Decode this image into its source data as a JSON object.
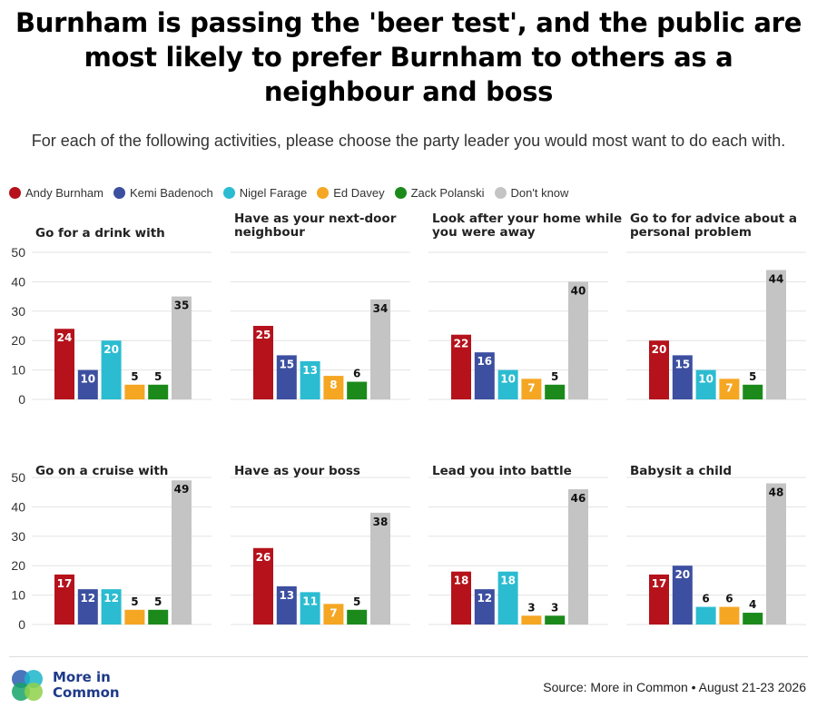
{
  "title": "Burnham is passing the 'beer test', and the public are most likely to prefer Burnham to others as a neighbour and boss",
  "subtitle": "For each of the following activities, please choose the party leader you would most want to do each with.",
  "legend": [
    {
      "name": "Andy Burnham",
      "color": "#b5121b"
    },
    {
      "name": "Kemi Badenoch",
      "color": "#3d4fa0"
    },
    {
      "name": "Nigel Farage",
      "color": "#2bbcd1"
    },
    {
      "name": "Ed Davey",
      "color": "#f5a623"
    },
    {
      "name": "Zack Polanski",
      "color": "#1b8a1b"
    },
    {
      "name": "Don't know",
      "color": "#c4c4c4"
    }
  ],
  "chart_data": [
    {
      "type": "bar",
      "title": "Go for a drink with",
      "categories": [
        "Andy Burnham",
        "Kemi Badenoch",
        "Nigel Farage",
        "Ed Davey",
        "Zack Polanski",
        "Don't know"
      ],
      "values": [
        24,
        10,
        20,
        5,
        5,
        35
      ],
      "ylim": [
        0,
        50
      ],
      "yticks": [
        0,
        10,
        20,
        30,
        40,
        50
      ]
    },
    {
      "type": "bar",
      "title": "Have as your next-door neighbour",
      "categories": [
        "Andy Burnham",
        "Kemi Badenoch",
        "Nigel Farage",
        "Ed Davey",
        "Zack Polanski",
        "Don't know"
      ],
      "values": [
        25,
        15,
        13,
        8,
        6,
        34
      ],
      "ylim": [
        0,
        50
      ]
    },
    {
      "type": "bar",
      "title": "Look after your home while you were away",
      "categories": [
        "Andy Burnham",
        "Kemi Badenoch",
        "Nigel Farage",
        "Ed Davey",
        "Zack Polanski",
        "Don't know"
      ],
      "values": [
        22,
        16,
        10,
        7,
        5,
        40
      ],
      "ylim": [
        0,
        50
      ]
    },
    {
      "type": "bar",
      "title": "Go to for advice about a personal problem",
      "categories": [
        "Andy Burnham",
        "Kemi Badenoch",
        "Nigel Farage",
        "Ed Davey",
        "Zack Polanski",
        "Don't know"
      ],
      "values": [
        20,
        15,
        10,
        7,
        5,
        44
      ],
      "ylim": [
        0,
        50
      ]
    },
    {
      "type": "bar",
      "title": "Go on a cruise with",
      "categories": [
        "Andy Burnham",
        "Kemi Badenoch",
        "Nigel Farage",
        "Ed Davey",
        "Zack Polanski",
        "Don't know"
      ],
      "values": [
        17,
        12,
        12,
        5,
        5,
        49
      ],
      "ylim": [
        0,
        50
      ],
      "yticks": [
        0,
        10,
        20,
        30,
        40,
        50
      ]
    },
    {
      "type": "bar",
      "title": "Have as your boss",
      "categories": [
        "Andy Burnham",
        "Kemi Badenoch",
        "Nigel Farage",
        "Ed Davey",
        "Zack Polanski",
        "Don't know"
      ],
      "values": [
        26,
        13,
        11,
        7,
        5,
        38
      ],
      "ylim": [
        0,
        50
      ]
    },
    {
      "type": "bar",
      "title": "Lead you into battle",
      "categories": [
        "Andy Burnham",
        "Kemi Badenoch",
        "Nigel Farage",
        "Ed Davey",
        "Zack Polanski",
        "Don't know"
      ],
      "values": [
        18,
        12,
        18,
        3,
        3,
        46
      ],
      "ylim": [
        0,
        50
      ]
    },
    {
      "type": "bar",
      "title": "Babysit a child",
      "categories": [
        "Andy Burnham",
        "Kemi Badenoch",
        "Nigel Farage",
        "Ed Davey",
        "Zack Polanski",
        "Don't know"
      ],
      "values": [
        17,
        20,
        6,
        6,
        4,
        48
      ],
      "ylim": [
        0,
        50
      ]
    }
  ],
  "brand": {
    "line1": "More in",
    "line2": "Common",
    "logo_colors": [
      "#2a5db0",
      "#1bb5c9",
      "#17a36a",
      "#8ed14a"
    ]
  },
  "source": "Source: More in Common • August 21-23 2026"
}
